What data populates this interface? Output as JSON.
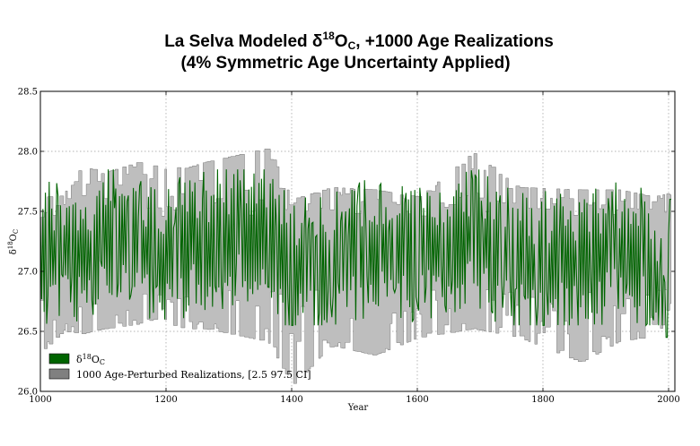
{
  "chart_data": {
    "type": "line",
    "title": "La Selva Modeled δ18OC, +1000 Age Realizations",
    "title_parts": {
      "pre": "La Selva Modeled δ",
      "sup": "18",
      "main": "O",
      "sub": "C",
      "post": ", +1000 Age Realizations"
    },
    "subtitle": "(4% Symmetric Age Uncertainty Applied)",
    "xlabel": "Year",
    "ylabel": "δ18OC",
    "ylabel_parts": {
      "pre": "δ",
      "sup": "18",
      "main": "O",
      "sub": "C"
    },
    "xlim": [
      1000,
      2010
    ],
    "ylim": [
      26.0,
      28.5
    ],
    "x_ticks": [
      1000,
      1200,
      1400,
      1600,
      1800,
      2000
    ],
    "y_ticks": [
      26.0,
      26.5,
      27.0,
      27.5,
      28.0,
      28.5
    ],
    "x_tick_labels": [
      "1000",
      "1200",
      "1400",
      "1600",
      "1800",
      "2000"
    ],
    "y_tick_labels": [
      "26.0",
      "26.5",
      "27.0",
      "27.5",
      "28.0",
      "28.5"
    ],
    "grid": true,
    "legend_position": "lower-left",
    "series": [
      {
        "name": "δ18OC",
        "legend_parts": {
          "pre": "δ",
          "sup": "18",
          "main": "O",
          "sub": "C"
        },
        "color": "#006400",
        "style": "line",
        "x_range": [
          1000,
          2004
        ],
        "step_years": 2,
        "typical_range": [
          26.6,
          27.8
        ],
        "mean": 27.15,
        "x": [
          1002,
          1035,
          1066,
          1100,
          1150,
          1200,
          1260,
          1355,
          1400,
          1463,
          1531,
          1603,
          1688,
          1760,
          1860,
          1922,
          1974,
          1998,
          2004
        ],
        "y": [
          27.15,
          27.2,
          27.1,
          27.3,
          27.2,
          27.15,
          27.25,
          27.35,
          27.0,
          27.1,
          27.2,
          27.15,
          27.3,
          27.05,
          27.1,
          27.2,
          27.1,
          26.45,
          27.6
        ]
      },
      {
        "name": "1000 Age-Perturbed Realizations, [2.5 97.5 CI]",
        "color": "#808080",
        "fill": "#bebebe",
        "style": "band",
        "x": [
          1000,
          1005,
          1035,
          1066,
          1100,
          1155,
          1180,
          1230,
          1262,
          1355,
          1363,
          1400,
          1463,
          1531,
          1603,
          1688,
          1760,
          1860,
          1922,
          1974,
          2000,
          2005
        ],
        "upper": [
          27.45,
          27.62,
          27.63,
          27.88,
          27.82,
          27.91,
          27.88,
          27.86,
          27.91,
          28.02,
          28.02,
          27.6,
          27.7,
          27.68,
          27.62,
          27.99,
          27.7,
          27.68,
          27.68,
          27.62,
          27.65,
          27.62
        ],
        "lower": [
          26.7,
          26.35,
          26.5,
          26.48,
          26.52,
          26.56,
          26.6,
          26.52,
          26.52,
          26.42,
          26.4,
          26.05,
          26.38,
          26.3,
          26.45,
          26.52,
          26.45,
          26.24,
          26.42,
          26.45,
          26.6,
          26.85
        ]
      }
    ]
  }
}
